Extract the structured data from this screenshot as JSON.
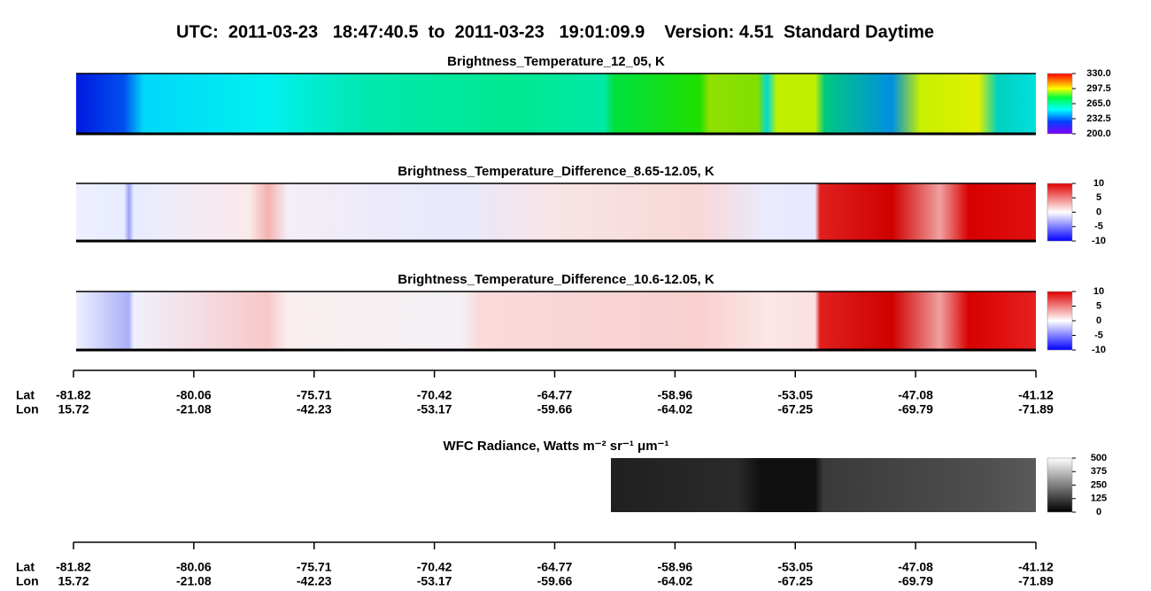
{
  "title": "UTC:  2011-03-23   18:47:40.5  to  2011-03-23   19:01:09.9    Version: 4.51  Standard Daytime",
  "chart_data": [
    {
      "type": "heatmap",
      "title": "Brightness_Temperature_12_05, K",
      "clim": [
        200,
        330
      ],
      "colorbar_ticks": [
        {
          "value": 330,
          "label": "330.0"
        },
        {
          "value": 297.5,
          "label": "297.5"
        },
        {
          "value": 265,
          "label": "265.0"
        },
        {
          "value": 232.5,
          "label": "232.5"
        },
        {
          "value": 200,
          "label": "200.0"
        }
      ]
    },
    {
      "type": "heatmap",
      "title": "Brightness_Temperature_Difference_8.65-12.05, K",
      "clim": [
        -10,
        10
      ],
      "colorbar_ticks": [
        10,
        5,
        0,
        -5,
        -10
      ]
    },
    {
      "type": "heatmap",
      "title": "Brightness_Temperature_Difference_10.6-12.05, K",
      "clim": [
        -10,
        10
      ],
      "colorbar_ticks": [
        10,
        5,
        0,
        -5,
        -10
      ]
    },
    {
      "type": "heatmap",
      "title": "WFC Radiance, Watts m⁻² sr⁻¹ μm⁻¹",
      "clim": [
        0,
        500
      ],
      "colorbar_ticks": [
        500,
        375,
        250,
        125,
        0
      ]
    }
  ],
  "x_axes": [
    {
      "rows": [
        {
          "name": "Lat",
          "values": [
            -81.82,
            -80.06,
            -75.71,
            -70.42,
            -64.77,
            -58.96,
            -53.05,
            -47.08,
            -41.12
          ]
        },
        {
          "name": "Lon",
          "values": [
            15.72,
            -21.08,
            -42.23,
            -53.17,
            -59.66,
            -64.02,
            -67.25,
            -69.79,
            -71.89
          ]
        }
      ]
    },
    {
      "rows": [
        {
          "name": "Lat",
          "values": [
            -81.82,
            -80.06,
            -75.71,
            -70.42,
            -64.77,
            -58.96,
            -53.05,
            -47.08,
            -41.12
          ]
        },
        {
          "name": "Lon",
          "values": [
            15.72,
            -21.08,
            -42.23,
            -53.17,
            -59.66,
            -64.02,
            -67.25,
            -69.79,
            -71.89
          ]
        }
      ]
    }
  ]
}
